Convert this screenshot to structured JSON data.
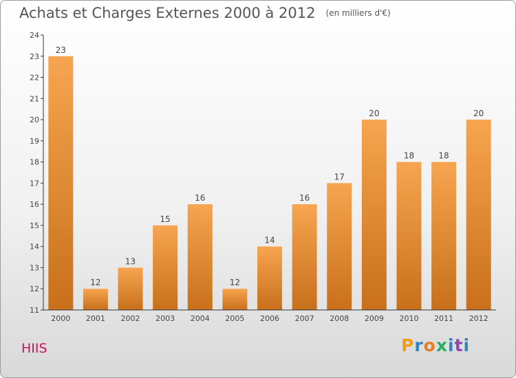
{
  "header": {
    "title": "Achats et Charges Externes 2000 à 2012",
    "subtitle": "(en milliers d'€)"
  },
  "footer": {
    "town": "HIIS",
    "logo": "Proxiti"
  },
  "colors": {
    "bar_top": "#f7a550",
    "bar_bottom": "#c8701b",
    "axis": "#333333",
    "grid": "#cfcfcf",
    "title": "#555555",
    "town": "#c2185b",
    "logo_letters": [
      "#f39c12",
      "#2e86c1",
      "#e67e22",
      "#27ae60",
      "#2e86c1",
      "#8e44ad",
      "#2e86c1"
    ]
  },
  "chart_data": {
    "type": "bar",
    "title": "Achats et Charges Externes 2000 à 2012",
    "subtitle": "(en milliers d'€)",
    "categories": [
      "2000",
      "2001",
      "2002",
      "2003",
      "2004",
      "2005",
      "2006",
      "2007",
      "2008",
      "2009",
      "2010",
      "2011",
      "2012"
    ],
    "values": [
      23,
      12,
      13,
      15,
      16,
      12,
      14,
      16,
      17,
      20,
      18,
      18,
      20
    ],
    "ylim": [
      11,
      24
    ],
    "yticks": [
      11,
      12,
      13,
      14,
      15,
      16,
      17,
      18,
      19,
      20,
      21,
      22,
      23,
      24
    ],
    "grid": false,
    "data_labels": true
  }
}
